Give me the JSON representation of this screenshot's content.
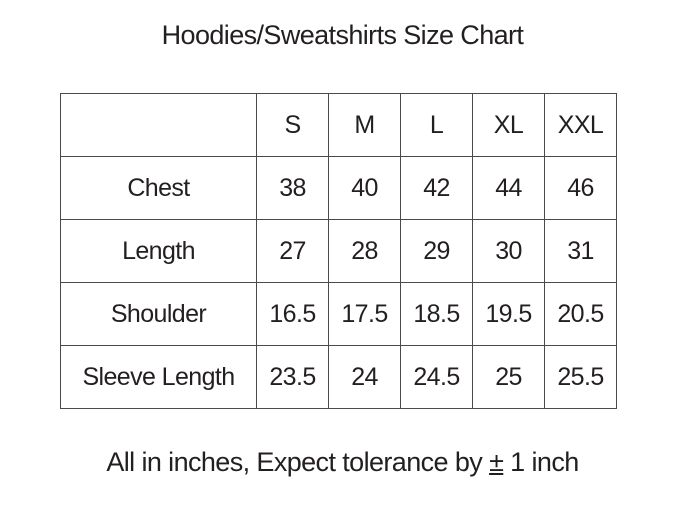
{
  "title": "Hoodies/Sweatshirts Size Chart",
  "table": {
    "header": [
      "",
      "S",
      "M",
      "L",
      "XL",
      "XXL"
    ],
    "rows": [
      {
        "label": "Chest",
        "values": [
          "38",
          "40",
          "42",
          "44",
          "46"
        ]
      },
      {
        "label": "Length",
        "values": [
          "27",
          "28",
          "29",
          "30",
          "31"
        ]
      },
      {
        "label": "Shoulder",
        "values": [
          "16.5",
          "17.5",
          "18.5",
          "19.5",
          "20.5"
        ]
      },
      {
        "label": "Sleeve Length",
        "values": [
          "23.5",
          "24",
          "24.5",
          "25",
          "25.5"
        ]
      }
    ]
  },
  "footer": {
    "before": "All in inches, Expect tolerance by ",
    "symbol": "±",
    "after": " 1 inch"
  }
}
